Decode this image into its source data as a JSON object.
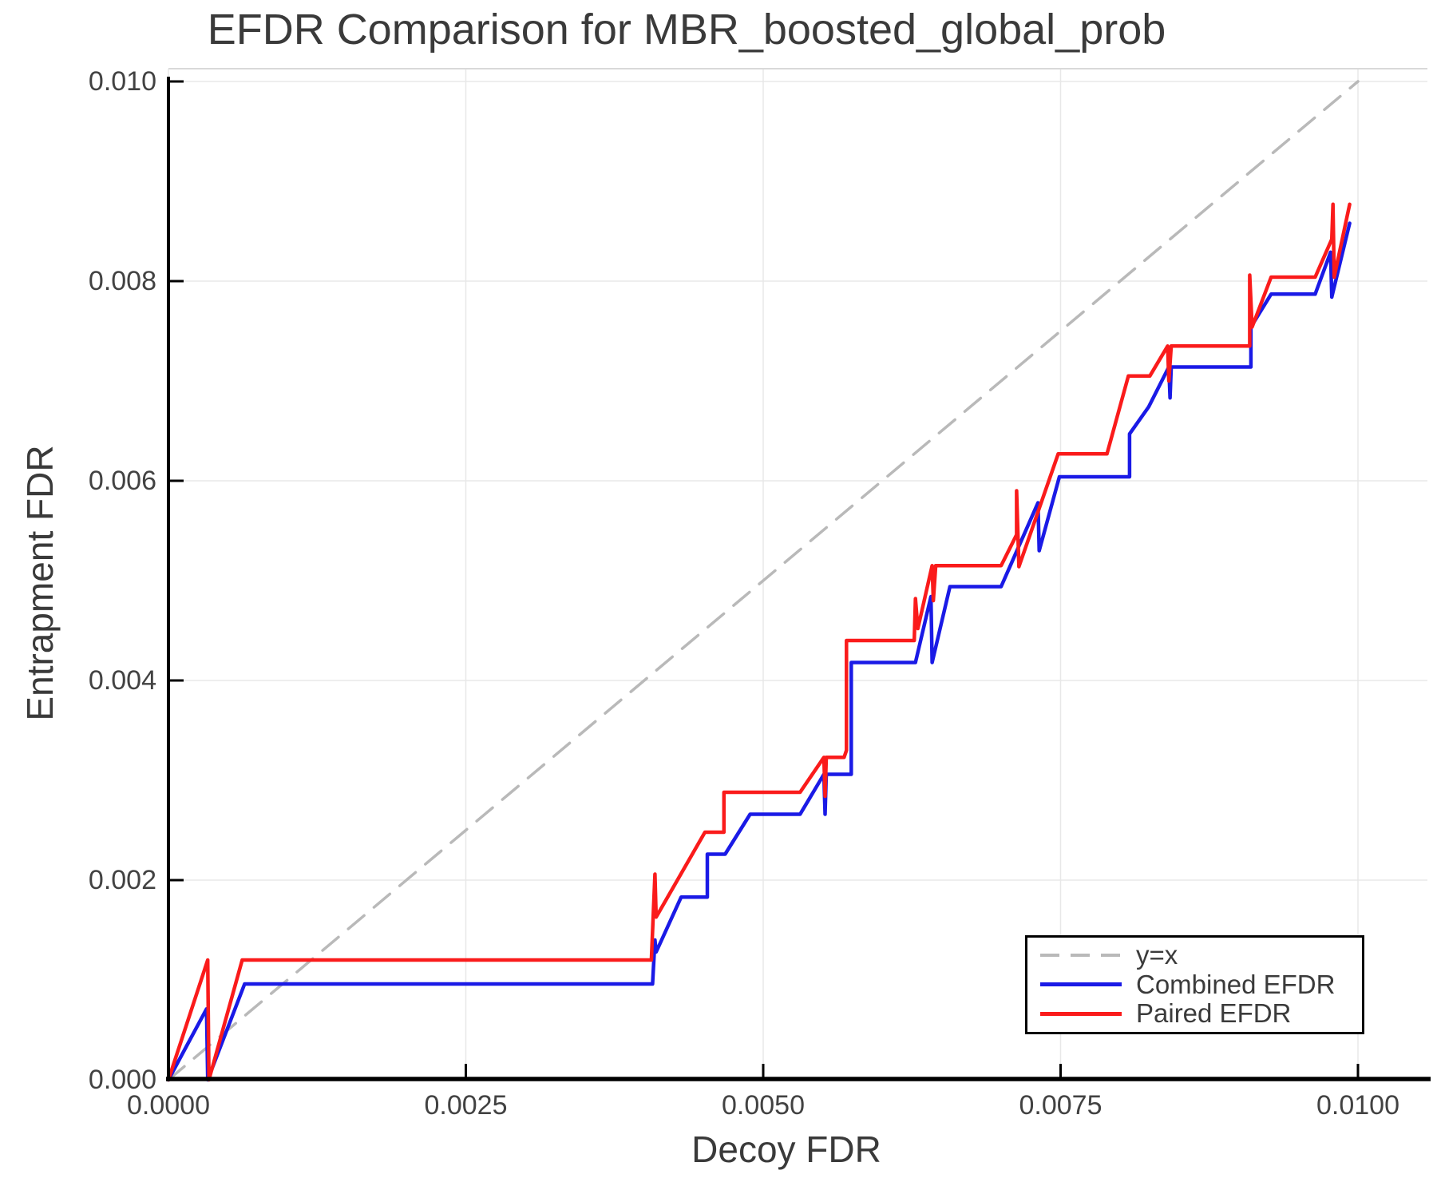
{
  "chart_data": {
    "type": "line",
    "title": "EFDR Comparison for MBR_boosted_global_prob",
    "xlabel": "Decoy FDR",
    "ylabel": "Entrapment FDR",
    "xlim": [
      0.0,
      0.01
    ],
    "ylim": [
      0.0,
      0.01
    ],
    "grid": true,
    "legend_position": "lower right",
    "x_ticks": {
      "values": [
        0.0,
        0.0025,
        0.005,
        0.0075,
        0.01
      ],
      "labels": [
        "0.0000",
        "0.0025",
        "0.0050",
        "0.0075",
        "0.0100"
      ]
    },
    "y_ticks": {
      "values": [
        0.0,
        0.002,
        0.004,
        0.006,
        0.008,
        0.01
      ],
      "labels": [
        "0.000",
        "0.002",
        "0.004",
        "0.006",
        "0.008",
        "0.010"
      ]
    },
    "series": [
      {
        "name": "y=x",
        "style": "dashed",
        "color": "#b9b9b9",
        "width": 3.5,
        "points": [
          [
            0.0,
            0.0
          ],
          [
            0.01,
            0.01
          ]
        ]
      },
      {
        "name": "Combined EFDR",
        "style": "solid",
        "color": "#1a1ae6",
        "width": 4.5,
        "points": [
          [
            0.0,
            0.0
          ],
          [
            0.00032,
            0.00071
          ],
          [
            0.00033,
            0.0
          ],
          [
            0.00064,
            0.00096
          ],
          [
            0.00407,
            0.00096
          ],
          [
            0.00409,
            0.0014
          ],
          [
            0.0041,
            0.00128
          ],
          [
            0.00431,
            0.00183
          ],
          [
            0.00453,
            0.00183
          ],
          [
            0.00453,
            0.00226
          ],
          [
            0.00468,
            0.00226
          ],
          [
            0.00489,
            0.00266
          ],
          [
            0.00531,
            0.00266
          ],
          [
            0.00551,
            0.00306
          ],
          [
            0.00552,
            0.00266
          ],
          [
            0.00553,
            0.00306
          ],
          [
            0.00574,
            0.00306
          ],
          [
            0.00574,
            0.00418
          ],
          [
            0.00628,
            0.00418
          ],
          [
            0.00641,
            0.00484
          ],
          [
            0.00642,
            0.00418
          ],
          [
            0.00657,
            0.00494
          ],
          [
            0.007,
            0.00494
          ],
          [
            0.00731,
            0.00578
          ],
          [
            0.00732,
            0.0053
          ],
          [
            0.00749,
            0.00604
          ],
          [
            0.00808,
            0.00604
          ],
          [
            0.00808,
            0.00647
          ],
          [
            0.00824,
            0.00674
          ],
          [
            0.00841,
            0.00714
          ],
          [
            0.00842,
            0.00683
          ],
          [
            0.00843,
            0.00714
          ],
          [
            0.0091,
            0.00714
          ],
          [
            0.0091,
            0.00754
          ],
          [
            0.00927,
            0.00787
          ],
          [
            0.00964,
            0.00787
          ],
          [
            0.00977,
            0.00829
          ],
          [
            0.00978,
            0.00784
          ],
          [
            0.00993,
            0.00858
          ]
        ]
      },
      {
        "name": "Paired EFDR",
        "style": "solid",
        "color": "#fa1b1b",
        "width": 4.5,
        "points": [
          [
            0.0,
            0.0
          ],
          [
            0.00033,
            0.0012
          ],
          [
            0.00034,
            0.0
          ],
          [
            0.00062,
            0.0012
          ],
          [
            0.00406,
            0.0012
          ],
          [
            0.00409,
            0.00206
          ],
          [
            0.0041,
            0.00163
          ],
          [
            0.00451,
            0.00248
          ],
          [
            0.00467,
            0.00248
          ],
          [
            0.00467,
            0.00288
          ],
          [
            0.00531,
            0.00288
          ],
          [
            0.00551,
            0.00323
          ],
          [
            0.00552,
            0.00284
          ],
          [
            0.00553,
            0.00323
          ],
          [
            0.00568,
            0.00323
          ],
          [
            0.0057,
            0.0033
          ],
          [
            0.0057,
            0.0044
          ],
          [
            0.00627,
            0.0044
          ],
          [
            0.00628,
            0.00482
          ],
          [
            0.0063,
            0.00452
          ],
          [
            0.00642,
            0.00515
          ],
          [
            0.00643,
            0.0048
          ],
          [
            0.00645,
            0.00515
          ],
          [
            0.007,
            0.00515
          ],
          [
            0.00713,
            0.00546
          ],
          [
            0.00713,
            0.0059
          ],
          [
            0.00715,
            0.00514
          ],
          [
            0.00748,
            0.00627
          ],
          [
            0.00789,
            0.00627
          ],
          [
            0.00807,
            0.00705
          ],
          [
            0.00825,
            0.00705
          ],
          [
            0.0084,
            0.00735
          ],
          [
            0.00841,
            0.007
          ],
          [
            0.00843,
            0.00735
          ],
          [
            0.00909,
            0.00735
          ],
          [
            0.00909,
            0.00806
          ],
          [
            0.00911,
            0.00754
          ],
          [
            0.00927,
            0.00804
          ],
          [
            0.00964,
            0.00804
          ],
          [
            0.00978,
            0.00842
          ],
          [
            0.00979,
            0.00877
          ],
          [
            0.0098,
            0.00804
          ],
          [
            0.00993,
            0.00877
          ]
        ]
      }
    ]
  },
  "colors": {
    "background": "#ffffff",
    "grid": "#e8e8e8",
    "frame_top": "#d9d9d9",
    "spine": "#000000",
    "tick": "#000000",
    "tick_label": "#424242",
    "title_text": "#3a3a3a",
    "legend_border": "#000000",
    "legend_bg": "#ffffff"
  }
}
